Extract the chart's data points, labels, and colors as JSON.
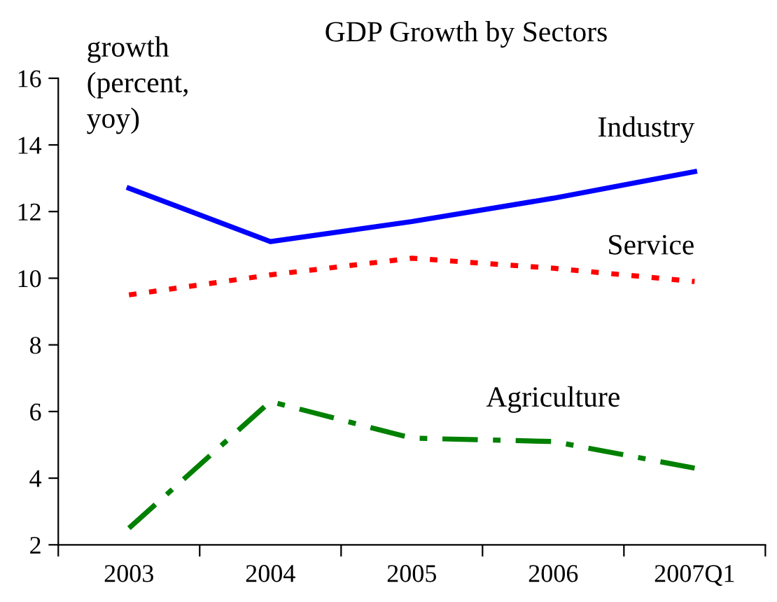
{
  "chart_data": {
    "type": "line",
    "title": "GDP Growth by Sectors",
    "ylabel": "growth\n(percent,\nyoy)",
    "categories": [
      "2003",
      "2004",
      "2005",
      "2006",
      "2007Q1"
    ],
    "series": [
      {
        "name": "Industry",
        "color": "#0000ff",
        "line_style": "solid",
        "values": [
          12.7,
          11.1,
          11.7,
          12.4,
          13.2
        ]
      },
      {
        "name": "Service",
        "color": "#ff0000",
        "line_style": "dotted",
        "values": [
          9.5,
          10.1,
          10.6,
          10.3,
          9.9
        ]
      },
      {
        "name": "Agriculture",
        "color": "#008000",
        "line_style": "dashed",
        "values": [
          2.5,
          6.3,
          5.2,
          5.1,
          4.3
        ]
      }
    ],
    "ylim": [
      2,
      16
    ],
    "yticks": [
      2,
      4,
      6,
      8,
      10,
      12,
      14,
      16
    ],
    "grid": false,
    "legend": false,
    "marker": "none"
  }
}
